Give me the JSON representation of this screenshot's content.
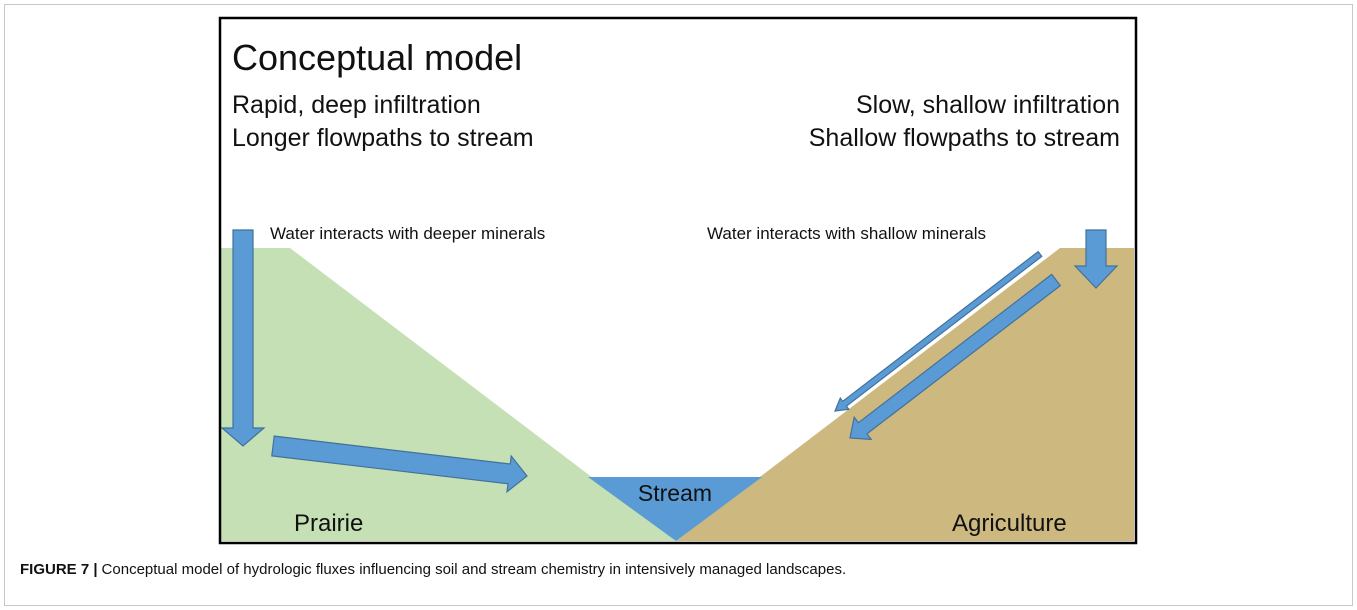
{
  "figure": {
    "title": "Conceptual model",
    "left_text": [
      "Rapid, deep infiltration",
      "Longer flowpaths to stream"
    ],
    "right_text": [
      "Slow, shallow infiltration",
      "Shallow flowpaths to stream"
    ],
    "left_arrow_label": "Water interacts with deeper minerals",
    "right_arrow_label": "Water interacts with shallow minerals",
    "stream_label": "Stream",
    "left_zone_label": "Prairie",
    "right_zone_label": "Agriculture"
  },
  "caption": {
    "label": "FIGURE 7 |",
    "text": "Conceptual model of hydrologic fluxes influencing soil and stream chemistry in intensively managed landscapes."
  }
}
